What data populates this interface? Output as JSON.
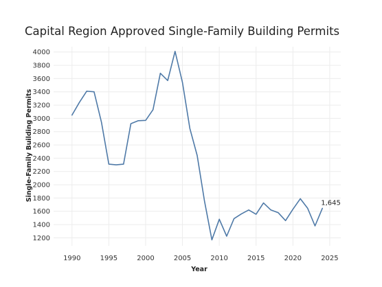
{
  "chart_data": {
    "type": "line",
    "title": "Capital Region Approved Single-Family Building Permits",
    "xlabel": "Year",
    "ylabel": "Single-Family Building Permits",
    "xlim": [
      1987.5,
      2026.5
    ],
    "ylim": [
      1080,
      4080
    ],
    "x_ticks": [
      1990,
      1995,
      2000,
      2005,
      2010,
      2015,
      2020,
      2025
    ],
    "y_ticks": [
      1200,
      1400,
      1600,
      1800,
      2000,
      2200,
      2400,
      2600,
      2800,
      3000,
      3200,
      3400,
      3600,
      3800,
      4000
    ],
    "grid": true,
    "line_color": "#4e79a7",
    "x": [
      1990,
      1991,
      1992,
      1993,
      1994,
      1995,
      1996,
      1997,
      1998,
      1999,
      2000,
      2001,
      2002,
      2003,
      2004,
      2005,
      2006,
      2007,
      2008,
      2009,
      2010,
      2011,
      2012,
      2013,
      2014,
      2015,
      2016,
      2017,
      2018,
      2019,
      2020,
      2021,
      2022,
      2023,
      2024
    ],
    "values": [
      3050,
      3240,
      3410,
      3400,
      2940,
      2310,
      2300,
      2310,
      2920,
      2965,
      2970,
      3130,
      3680,
      3570,
      4010,
      3540,
      2850,
      2440,
      1750,
      1170,
      1480,
      1225,
      1490,
      1560,
      1620,
      1555,
      1725,
      1620,
      1580,
      1460,
      1630,
      1790,
      1645,
      1380,
      1645
    ],
    "annotation": {
      "x": 2024,
      "text": "1,645"
    }
  }
}
